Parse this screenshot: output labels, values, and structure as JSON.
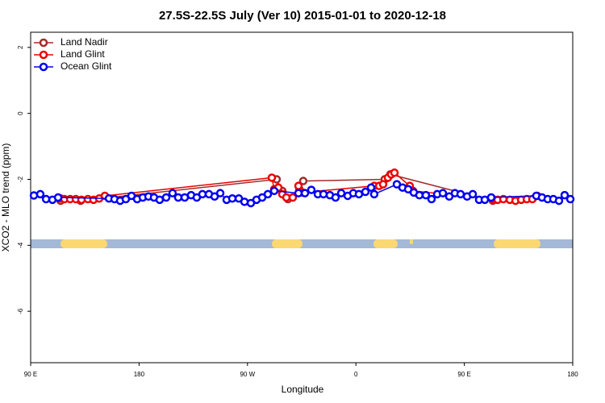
{
  "chart_data": {
    "type": "line",
    "title": "27.5S-22.5S July (Ver 10)   2015-01-01 to 2020-12-18",
    "x_label": "Longitude",
    "y_label": "XCO2 - MLO trend (ppm)",
    "xlim": [
      90,
      540
    ],
    "xticks": [
      {
        "value": 90,
        "label": "90 E"
      },
      180,
      {
        "value": 270,
        "label": "90 W"
      },
      {
        "value": 360,
        "label": "0"
      },
      {
        "value": 450,
        "label": "90 E"
      },
      {
        "value": 540,
        "label": "180"
      }
    ],
    "ylim": [
      -7.56,
      2.46
    ],
    "yticks": [
      -6,
      -4,
      -2,
      0,
      2
    ],
    "legend": "top-left",
    "series": [
      {
        "name": "Land Nadir",
        "color": "#a52a2a",
        "x": [
          114.8,
          131.5,
          294.2,
          298.9,
          303.6,
          313,
          316.3,
          383.9,
          388.6,
          473.7
        ],
        "values": [
          -2.65,
          -2.65,
          -2.0,
          -2.35,
          -2.6,
          -2.3,
          -2.05,
          -2.0,
          -1.85,
          -2.65
        ]
      },
      {
        "name": "Land Glint",
        "color": "#ee0000",
        "x": [
          114.8,
          118.1,
          122.8,
          127.5,
          132.2,
          137.5,
          142.2,
          146.9,
          151.6,
          290.2,
          292.2,
          295.6,
          298.9,
          302.3,
          307.6,
          312.3,
          315.7,
          375.2,
          379.3,
          382.6,
          386.6,
          389.3,
          392,
          404.7,
          407.4,
          473.7,
          477.7,
          482.4,
          487.8,
          492.5,
          497.2,
          501.9,
          506.5,
          510.5
        ],
        "values": [
          -2.58,
          -2.6,
          -2.6,
          -2.6,
          -2.62,
          -2.6,
          -2.62,
          -2.58,
          -2.5,
          -1.95,
          -2.3,
          -2.25,
          -2.45,
          -2.55,
          -2.55,
          -2.2,
          -2.4,
          -2.2,
          -2.2,
          -2.15,
          -1.95,
          -1.85,
          -1.8,
          -2.2,
          -2.35,
          -2.6,
          -2.62,
          -2.6,
          -2.62,
          -2.65,
          -2.62,
          -2.6,
          -2.6,
          -2.5
        ]
      },
      {
        "name": "Ocean Glint",
        "color": "#0000ee",
        "x": [
          92.7,
          98,
          102.8,
          108.1,
          112.8,
          155,
          159.6,
          164.3,
          169,
          173.7,
          178.4,
          183.1,
          187.8,
          192.4,
          197.1,
          202.5,
          207.8,
          212.5,
          217.9,
          223.2,
          227.9,
          232.6,
          238,
          242.7,
          247.4,
          252.7,
          257.4,
          262.8,
          267.5,
          272.8,
          277.5,
          282.2,
          286.9,
          292.2,
          312.3,
          317.7,
          323,
          328.4,
          333.1,
          338.4,
          343.1,
          347.8,
          353.2,
          357.8,
          362.5,
          367.9,
          372.6,
          375.2,
          394,
          398.7,
          403.4,
          408.1,
          412.7,
          418.1,
          422.8,
          427.5,
          432.2,
          437.5,
          442.2,
          446.9,
          452.3,
          457,
          462.3,
          467,
          472.3,
          509.8,
          514.5,
          519.2,
          523.9,
          528.6,
          533.3,
          538
        ],
        "values": [
          -2.49,
          -2.45,
          -2.6,
          -2.62,
          -2.55,
          -2.58,
          -2.6,
          -2.65,
          -2.6,
          -2.5,
          -2.6,
          -2.55,
          -2.52,
          -2.55,
          -2.62,
          -2.55,
          -2.42,
          -2.55,
          -2.55,
          -2.48,
          -2.55,
          -2.45,
          -2.45,
          -2.52,
          -2.42,
          -2.62,
          -2.58,
          -2.58,
          -2.68,
          -2.72,
          -2.62,
          -2.55,
          -2.45,
          -2.35,
          -2.42,
          -2.42,
          -2.32,
          -2.45,
          -2.45,
          -2.48,
          -2.55,
          -2.42,
          -2.5,
          -2.42,
          -2.45,
          -2.38,
          -2.25,
          -2.45,
          -2.15,
          -2.25,
          -2.3,
          -2.4,
          -2.48,
          -2.48,
          -2.6,
          -2.45,
          -2.42,
          -2.52,
          -2.42,
          -2.45,
          -2.52,
          -2.45,
          -2.62,
          -2.62,
          -2.55,
          -2.5,
          -2.55,
          -2.6,
          -2.6,
          -2.65,
          -2.48,
          -2.6
        ]
      }
    ]
  }
}
